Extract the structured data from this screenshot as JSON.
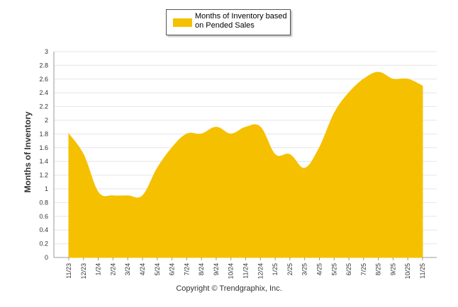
{
  "chart_data": {
    "type": "area",
    "title": "",
    "xlabel": "",
    "ylabel": "Months of Inventory",
    "ylim": [
      0,
      3
    ],
    "yticks": [
      "0",
      "0.2",
      "0.4",
      "0.6",
      "0.8",
      "1",
      "1.2",
      "1.4",
      "1.6",
      "1.8",
      "2",
      "2.2",
      "2.4",
      "2.6",
      "2.8",
      "3"
    ],
    "grid": true,
    "legend": "top-center",
    "categories": [
      "11/23",
      "12/23",
      "1/24",
      "2/24",
      "3/24",
      "4/24",
      "5/24",
      "6/24",
      "7/24",
      "8/24",
      "9/24",
      "10/24",
      "11/24",
      "12/24",
      "1/25",
      "2/25",
      "3/25",
      "4/25",
      "5/25",
      "6/25",
      "7/25",
      "8/25",
      "9/25",
      "10/25",
      "11/25"
    ],
    "series": [
      {
        "name": "Months of Inventory based on Pended Sales",
        "color": "#F5C000",
        "values": [
          1.8,
          1.5,
          0.95,
          0.9,
          0.9,
          0.9,
          1.3,
          1.6,
          1.8,
          1.8,
          1.9,
          1.8,
          1.9,
          1.9,
          1.5,
          1.5,
          1.3,
          1.6,
          2.1,
          2.4,
          2.6,
          2.7,
          2.6,
          2.6,
          2.5
        ]
      }
    ]
  },
  "footer": {
    "copyright": "Copyright © Trendgraphix, Inc."
  }
}
